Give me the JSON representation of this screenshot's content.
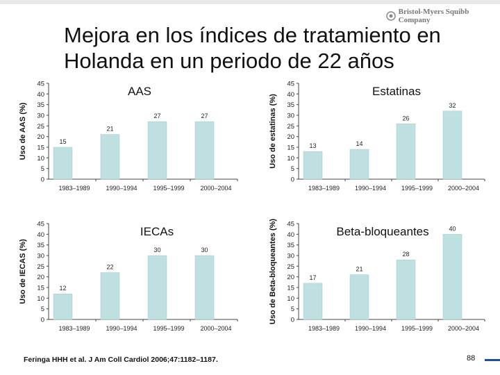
{
  "header": {
    "title": "Mejora en los índices de tratamiento en Holanda en un periodo de 22 años",
    "logo_text": "Bristol-Myers Squibb Company"
  },
  "footer": {
    "citation": "Feringa HHH et al. J Am Coll Cardiol 2006;47:1182–1187.",
    "page_number": "88"
  },
  "colors": {
    "bar": "#bfe0e0",
    "bar_stroke": "#a4c8c8",
    "axis": "#444444"
  },
  "chart_data": [
    {
      "type": "bar",
      "title": "AAS",
      "ylabel": "Uso de AAS (%)",
      "xlabel": "",
      "categories": [
        "1983–1989",
        "1990–1994",
        "1995–1999",
        "2000–2004"
      ],
      "values": [
        15,
        21,
        27,
        27
      ],
      "ylim": [
        0,
        45
      ],
      "yticks": [
        0,
        5,
        10,
        15,
        20,
        25,
        30,
        35,
        40,
        45
      ]
    },
    {
      "type": "bar",
      "title": "Estatinas",
      "ylabel": "Uso de estatinas (%)",
      "xlabel": "",
      "categories": [
        "1983–1989",
        "1990–1994",
        "1995–1999",
        "2000–2004"
      ],
      "values": [
        13,
        14,
        26,
        32
      ],
      "ylim": [
        0,
        45
      ],
      "yticks": [
        0,
        5,
        10,
        15,
        20,
        25,
        30,
        35,
        40,
        45
      ]
    },
    {
      "type": "bar",
      "title": "IECAs",
      "ylabel": "Uso de IECAS (%)",
      "xlabel": "",
      "categories": [
        "1983–1989",
        "1990–1994",
        "1995–1999",
        "2000–2004"
      ],
      "values": [
        12,
        22,
        30,
        30
      ],
      "ylim": [
        0,
        45
      ],
      "yticks": [
        0,
        5,
        10,
        15,
        20,
        25,
        30,
        35,
        40,
        45
      ]
    },
    {
      "type": "bar",
      "title": "Beta-bloqueantes",
      "ylabel": "Uso de Beta-bloqueantes (%)",
      "xlabel": "",
      "categories": [
        "1983–1989",
        "1990–1994",
        "1995–1999",
        "2000–2004"
      ],
      "values": [
        17,
        21,
        28,
        40
      ],
      "ylim": [
        0,
        45
      ],
      "yticks": [
        0,
        5,
        10,
        15,
        20,
        25,
        30,
        35,
        40,
        45
      ]
    }
  ]
}
